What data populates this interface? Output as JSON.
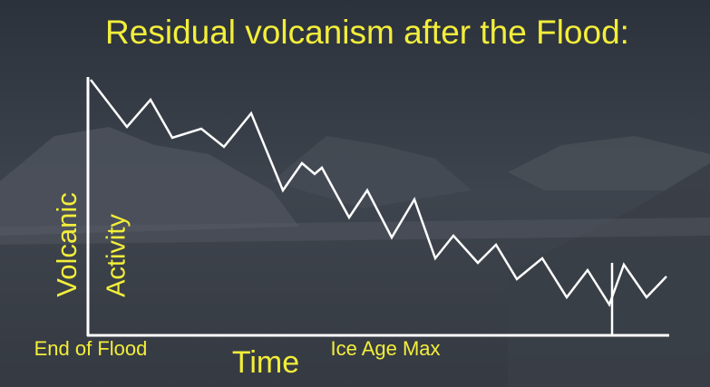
{
  "chart_data": {
    "type": "line",
    "title": "Residual volcanism after the Flood:",
    "y_label_lines": [
      "Volcanic",
      "Activity"
    ],
    "x_label": "Time",
    "annotations": [
      "End of Flood",
      "Ice Age Max"
    ],
    "x": [
      3,
      43,
      69,
      93,
      125,
      150,
      180,
      215,
      236,
      250,
      258,
      288,
      308,
      335,
      360,
      383,
      403,
      430,
      450,
      473,
      501,
      528,
      551,
      575,
      591,
      616,
      638
    ],
    "values": [
      282,
      230,
      260,
      218,
      228,
      208,
      245,
      160,
      190,
      178,
      185,
      130,
      160,
      108,
      150,
      85,
      110,
      80,
      100,
      62,
      85,
      42,
      72,
      34,
      78,
      42,
      65
    ],
    "marker": {
      "x": 578,
      "y": 80
    },
    "xlim": [
      0,
      641
    ],
    "ylim": [
      0,
      285
    ],
    "color": "#ffffff"
  }
}
